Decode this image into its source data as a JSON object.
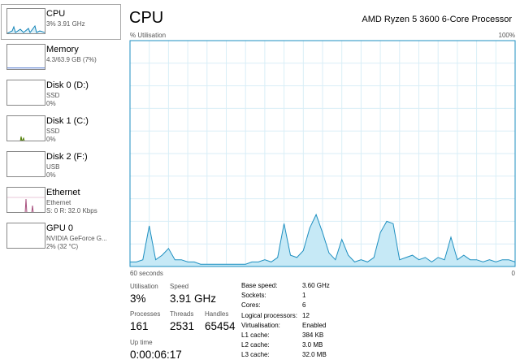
{
  "sidebar": {
    "items": [
      {
        "name": "CPU",
        "details": [
          "3% 3.91 GHz"
        ]
      },
      {
        "name": "Memory",
        "details": [
          "4.3/63.9 GB (7%)"
        ]
      },
      {
        "name": "Disk 0 (D:)",
        "details": [
          "SSD",
          "0%"
        ]
      },
      {
        "name": "Disk 1 (C:)",
        "details": [
          "SSD",
          "0%"
        ]
      },
      {
        "name": "Disk 2 (F:)",
        "details": [
          "USB",
          "0%"
        ]
      },
      {
        "name": "Ethernet",
        "details": [
          "Ethernet",
          "S: 0 R: 32.0 Kbps"
        ]
      },
      {
        "name": "GPU 0",
        "details": [
          "NVIDIA GeForce G...",
          "2% (32 °C)"
        ]
      }
    ]
  },
  "panel": {
    "title": "CPU",
    "processor": "AMD Ryzen 5 3600 6-Core Processor"
  },
  "cpu_graph": {
    "type": "area",
    "y_label": "% Utilisation",
    "y_max_label": "100%",
    "x_start_label": "60 seconds",
    "x_end_label": "0",
    "ylim": [
      0,
      100
    ],
    "color": "#1e8fc0",
    "fill": "#c6e9f6",
    "grid_color": "#d9eef7",
    "values": [
      2,
      2,
      3,
      18,
      3,
      5,
      8,
      3,
      3,
      2,
      2,
      1,
      1,
      1,
      1,
      1,
      1,
      1,
      1,
      2,
      2,
      3,
      2,
      4,
      19,
      5,
      4,
      7,
      17,
      23,
      15,
      6,
      3,
      12,
      5,
      2,
      3,
      2,
      4,
      15,
      20,
      19,
      3,
      4,
      5,
      3,
      4,
      2,
      4,
      3,
      13,
      3,
      5,
      3,
      3,
      2,
      3,
      2,
      3,
      3,
      2
    ]
  },
  "stats": {
    "utilisation": {
      "label": "Utilisation",
      "value": "3%"
    },
    "speed": {
      "label": "Speed",
      "value": "3.91 GHz"
    },
    "processes": {
      "label": "Processes",
      "value": "161"
    },
    "threads": {
      "label": "Threads",
      "value": "2531"
    },
    "handles": {
      "label": "Handles",
      "value": "65454"
    },
    "uptime": {
      "label": "Up time",
      "value": "0:00:06:17"
    }
  },
  "info": [
    [
      "Base speed:",
      "3.60 GHz"
    ],
    [
      "Sockets:",
      "1"
    ],
    [
      "Cores:",
      "6"
    ],
    [
      "Logical processors:",
      "12"
    ],
    [
      "Virtualisation:",
      "Enabled"
    ],
    [
      "L1 cache:",
      "384 KB"
    ],
    [
      "L2 cache:",
      "3.0 MB"
    ],
    [
      "L3 cache:",
      "32.0 MB"
    ]
  ]
}
